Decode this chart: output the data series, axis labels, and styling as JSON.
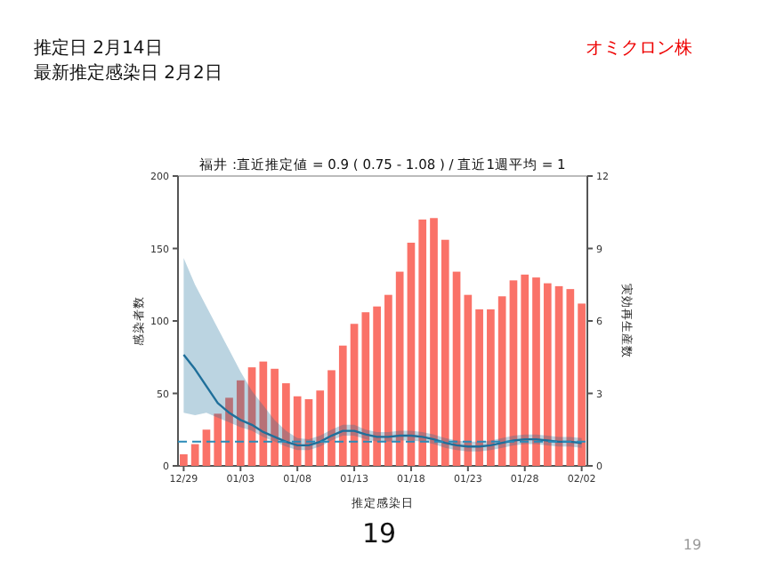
{
  "chart_data": {
    "type": "bar",
    "title": "福井 :直近推定値 = 0.9 ( 0.75 - 1.08 ) / 直近1週平均 = 1",
    "xlabel": "推定感染日",
    "ylabel": "感染者数",
    "y2label": "実効再生産数",
    "annotations": [
      "推定日  2月14日",
      "最新推定感染日  2月2日",
      "オミクロン株",
      "19",
      "19"
    ],
    "categories": [
      "12/29",
      null,
      null,
      null,
      null,
      "01/03",
      null,
      null,
      null,
      null,
      "01/08",
      null,
      null,
      null,
      null,
      "01/13",
      null,
      null,
      null,
      null,
      "01/18",
      null,
      null,
      null,
      null,
      "01/23",
      null,
      null,
      null,
      null,
      "01/28",
      null,
      null,
      null,
      null,
      "02/02"
    ],
    "series": [
      {
        "color": "#fa7268",
        "values": [
          8,
          15,
          25,
          36,
          47,
          59,
          68,
          72,
          67,
          57,
          48,
          46,
          52,
          66,
          83,
          98,
          106,
          110,
          118,
          134,
          154,
          170,
          171,
          156,
          134,
          118,
          108,
          108,
          117,
          128,
          132,
          130,
          126,
          124,
          122,
          112
        ]
      },
      {
        "type": "line",
        "axis": "y2",
        "color": "#1f6f9a",
        "values": [
          4.6,
          4.0,
          3.3,
          2.6,
          2.2,
          1.9,
          1.7,
          1.4,
          1.2,
          1.0,
          0.85,
          0.85,
          1.0,
          1.25,
          1.45,
          1.45,
          1.3,
          1.2,
          1.2,
          1.25,
          1.25,
          1.2,
          1.1,
          0.95,
          0.85,
          0.8,
          0.8,
          0.85,
          0.95,
          1.05,
          1.1,
          1.1,
          1.05,
          1.0,
          1.0,
          0.95
        ],
        "lower": [
          2.2,
          2.1,
          2.2,
          2.0,
          1.8,
          1.6,
          1.45,
          1.2,
          1.0,
          0.8,
          0.65,
          0.65,
          0.8,
          1.05,
          1.25,
          1.25,
          1.1,
          1.0,
          1.0,
          1.05,
          1.05,
          1.0,
          0.9,
          0.75,
          0.65,
          0.6,
          0.6,
          0.65,
          0.75,
          0.85,
          0.9,
          0.9,
          0.85,
          0.8,
          0.8,
          0.75
        ],
        "upper": [
          8.6,
          7.5,
          6.6,
          5.7,
          4.8,
          3.9,
          3.1,
          2.5,
          1.9,
          1.45,
          1.15,
          1.1,
          1.25,
          1.5,
          1.7,
          1.7,
          1.5,
          1.4,
          1.4,
          1.45,
          1.45,
          1.4,
          1.3,
          1.15,
          1.05,
          1.0,
          1.0,
          1.05,
          1.15,
          1.25,
          1.3,
          1.3,
          1.25,
          1.2,
          1.2,
          1.15
        ]
      }
    ],
    "ylim": [
      0,
      200
    ],
    "yticks": [
      0,
      50,
      100,
      150,
      200
    ],
    "y2lim": [
      0,
      12
    ],
    "y2ticks": [
      0,
      3,
      6,
      9,
      12
    ],
    "ref_lines": [
      {
        "axis": "y2",
        "value": 1,
        "color": "#2a8ab8",
        "line_style": "dashed"
      }
    ]
  }
}
